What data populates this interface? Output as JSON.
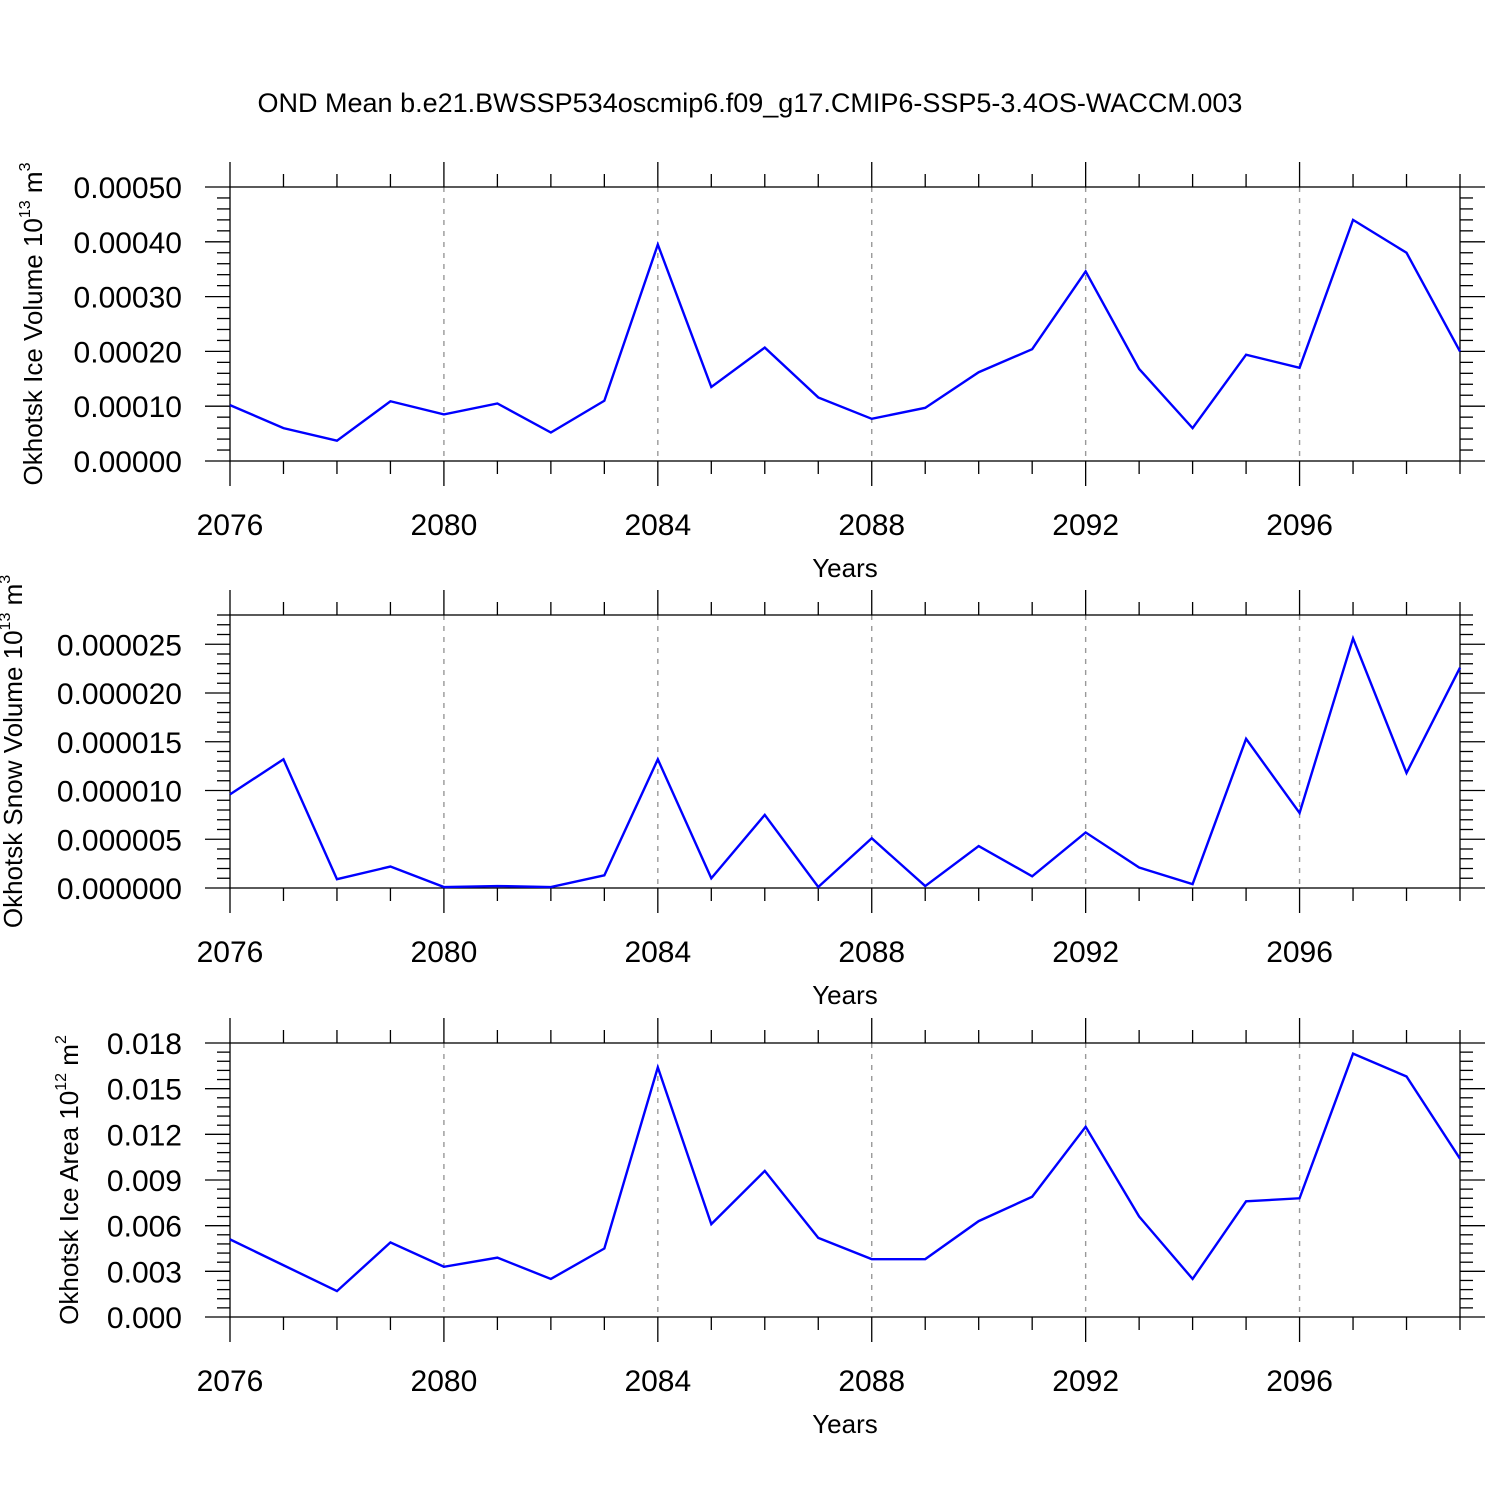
{
  "title": "OND Mean b.e21.BWSSP534oscmip6.f09_g17.CMIP6-SSP5-3.4OS-WACCM.003",
  "chart_data": [
    {
      "type": "line",
      "xlabel": "Years",
      "ylabel": "Okhotsk Ice Volume 10",
      "ylabel_exp": "13",
      "ylabel_unit": " m",
      "ylabel_unit_exp": "3",
      "xlim": [
        2076,
        2099
      ],
      "ylim": [
        0,
        0.0005
      ],
      "xticks": [
        2076,
        2080,
        2084,
        2088,
        2092,
        2096
      ],
      "xtick_labels": [
        "2076",
        "2080",
        "2084",
        "2088",
        "2092",
        "2096"
      ],
      "yticks": [
        0,
        0.0001,
        0.0002,
        0.0003,
        0.0004,
        0.0005
      ],
      "ytick_labels": [
        "0.00000",
        "0.00010",
        "0.00020",
        "0.00030",
        "0.00040",
        "0.00050"
      ],
      "series": [
        {
          "name": "Okhotsk Ice Volume",
          "color": "#0000ff",
          "x": [
            2076,
            2077,
            2078,
            2079,
            2080,
            2081,
            2082,
            2083,
            2084,
            2085,
            2086,
            2087,
            2088,
            2089,
            2090,
            2091,
            2092,
            2093,
            2094,
            2095,
            2096,
            2097,
            2098,
            2099
          ],
          "values": [
            0.000102,
            6e-05,
            3.7e-05,
            0.000109,
            8.5e-05,
            0.000105,
            5.2e-05,
            0.00011,
            0.000395,
            0.000135,
            0.000207,
            0.000116,
            7.7e-05,
            9.7e-05,
            0.000162,
            0.000204,
            0.000346,
            0.000168,
            6e-05,
            0.000194,
            0.00017,
            0.00044,
            0.00038,
            0.0002
          ]
        }
      ]
    },
    {
      "type": "line",
      "xlabel": "Years",
      "ylabel": "Okhotsk Snow Volume 10",
      "ylabel_exp": "13",
      "ylabel_unit": " m",
      "ylabel_unit_exp": "3",
      "xlim": [
        2076,
        2099
      ],
      "ylim": [
        0,
        2.8e-05
      ],
      "xticks": [
        2076,
        2080,
        2084,
        2088,
        2092,
        2096
      ],
      "xtick_labels": [
        "2076",
        "2080",
        "2084",
        "2088",
        "2092",
        "2096"
      ],
      "yticks": [
        0,
        5e-06,
        1e-05,
        1.5e-05,
        2e-05,
        2.5e-05
      ],
      "ytick_labels": [
        "0.000000",
        "0.000005",
        "0.000010",
        "0.000015",
        "0.000020",
        "0.000025"
      ],
      "series": [
        {
          "name": "Okhotsk Snow Volume",
          "color": "#0000ff",
          "x": [
            2076,
            2077,
            2078,
            2079,
            2080,
            2081,
            2082,
            2083,
            2084,
            2085,
            2086,
            2087,
            2088,
            2089,
            2090,
            2091,
            2092,
            2093,
            2094,
            2095,
            2096,
            2097,
            2098,
            2099
          ],
          "values": [
            9.6e-06,
            1.32e-05,
            9e-07,
            2.2e-06,
            1e-07,
            2e-07,
            1e-07,
            1.3e-06,
            1.32e-05,
            1e-06,
            7.5e-06,
            1e-07,
            5.1e-06,
            2e-07,
            4.3e-06,
            1.2e-06,
            5.7e-06,
            2.1e-06,
            4e-07,
            1.53e-05,
            7.7e-06,
            2.56e-05,
            1.18e-05,
            2.26e-05
          ]
        }
      ]
    },
    {
      "type": "line",
      "xlabel": "Years",
      "ylabel": "Okhotsk Ice Area 10",
      "ylabel_exp": "12",
      "ylabel_unit": " m",
      "ylabel_unit_exp": "2",
      "xlim": [
        2076,
        2099
      ],
      "ylim": [
        0,
        0.018
      ],
      "xticks": [
        2076,
        2080,
        2084,
        2088,
        2092,
        2096
      ],
      "xtick_labels": [
        "2076",
        "2080",
        "2084",
        "2088",
        "2092",
        "2096"
      ],
      "yticks": [
        0,
        0.003,
        0.006,
        0.009,
        0.012,
        0.015,
        0.018
      ],
      "ytick_labels": [
        "0.000",
        "0.003",
        "0.006",
        "0.009",
        "0.012",
        "0.015",
        "0.018"
      ],
      "series": [
        {
          "name": "Okhotsk Ice Area",
          "color": "#0000ff",
          "x": [
            2076,
            2077,
            2078,
            2079,
            2080,
            2081,
            2082,
            2083,
            2084,
            2085,
            2086,
            2087,
            2088,
            2089,
            2090,
            2091,
            2092,
            2093,
            2094,
            2095,
            2096,
            2097,
            2098,
            2099
          ],
          "values": [
            0.0051,
            0.0034,
            0.0017,
            0.0049,
            0.0033,
            0.0039,
            0.0025,
            0.0045,
            0.0164,
            0.0061,
            0.0096,
            0.0052,
            0.0038,
            0.0038,
            0.0063,
            0.0079,
            0.0125,
            0.0066,
            0.0025,
            0.0076,
            0.0078,
            0.0173,
            0.0158,
            0.0104
          ]
        }
      ]
    }
  ]
}
